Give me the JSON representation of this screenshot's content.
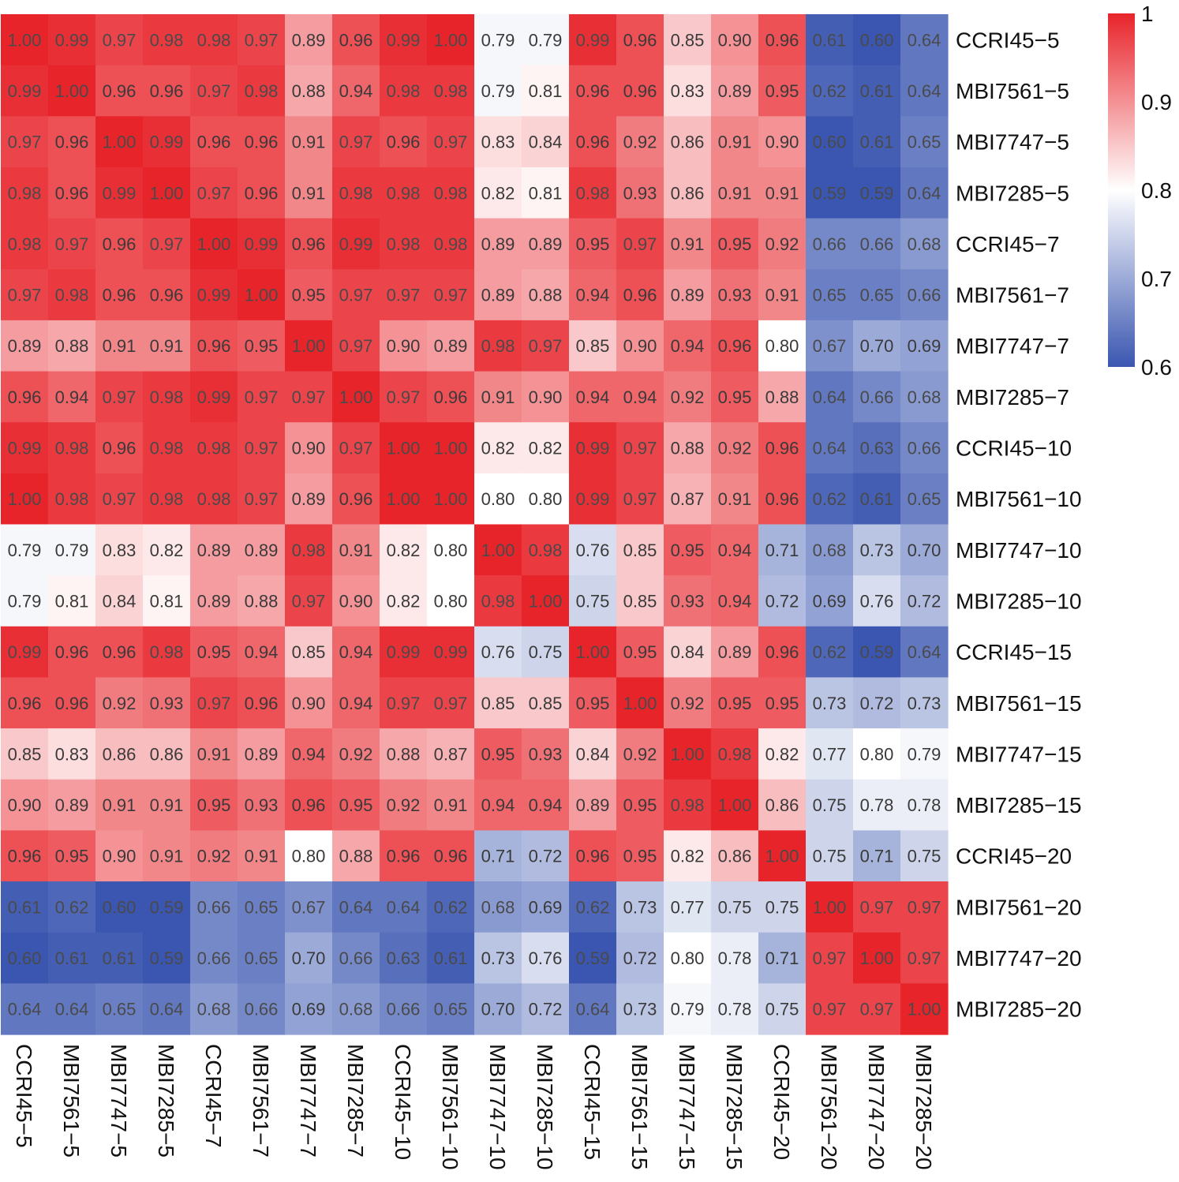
{
  "chart_data": {
    "type": "heatmap",
    "title": "",
    "rows": [
      "CCRI45−5",
      "MBI7561−5",
      "MBI7747−5",
      "MBI7285−5",
      "CCRI45−7",
      "MBI7561−7",
      "MBI7747−7",
      "MBI7285−7",
      "CCRI45−10",
      "MBI7561−10",
      "MBI7747−10",
      "MBI7285−10",
      "CCRI45−15",
      "MBI7561−15",
      "MBI7747−15",
      "MBI7285−15",
      "CCRI45−20",
      "MBI7561−20",
      "MBI7747−20",
      "MBI7285−20"
    ],
    "columns": [
      "CCRI45−5",
      "MBI7561−5",
      "MBI7747−5",
      "MBI7285−5",
      "CCRI45−7",
      "MBI7561−7",
      "MBI7747−7",
      "MBI7285−7",
      "CCRI45−10",
      "MBI7561−10",
      "MBI7747−10",
      "MBI7285−10",
      "CCRI45−15",
      "MBI7561−15",
      "MBI7747−15",
      "MBI7285−15",
      "CCRI45−20",
      "MBI7561−20",
      "MBI7747−20",
      "MBI7285−20"
    ],
    "values": [
      [
        1.0,
        0.99,
        0.97,
        0.98,
        0.98,
        0.97,
        0.89,
        0.96,
        0.99,
        1.0,
        0.79,
        0.79,
        0.99,
        0.96,
        0.85,
        0.9,
        0.96,
        0.61,
        0.6,
        0.64
      ],
      [
        0.99,
        1.0,
        0.96,
        0.96,
        0.97,
        0.98,
        0.88,
        0.94,
        0.98,
        0.98,
        0.79,
        0.81,
        0.96,
        0.96,
        0.83,
        0.89,
        0.95,
        0.62,
        0.61,
        0.64
      ],
      [
        0.97,
        0.96,
        1.0,
        0.99,
        0.96,
        0.96,
        0.91,
        0.97,
        0.96,
        0.97,
        0.83,
        0.84,
        0.96,
        0.92,
        0.86,
        0.91,
        0.9,
        0.6,
        0.61,
        0.65
      ],
      [
        0.98,
        0.96,
        0.99,
        1.0,
        0.97,
        0.96,
        0.91,
        0.98,
        0.98,
        0.98,
        0.82,
        0.81,
        0.98,
        0.93,
        0.86,
        0.91,
        0.91,
        0.59,
        0.59,
        0.64
      ],
      [
        0.98,
        0.97,
        0.96,
        0.97,
        1.0,
        0.99,
        0.96,
        0.99,
        0.98,
        0.98,
        0.89,
        0.89,
        0.95,
        0.97,
        0.91,
        0.95,
        0.92,
        0.66,
        0.66,
        0.68
      ],
      [
        0.97,
        0.98,
        0.96,
        0.96,
        0.99,
        1.0,
        0.95,
        0.97,
        0.97,
        0.97,
        0.89,
        0.88,
        0.94,
        0.96,
        0.89,
        0.93,
        0.91,
        0.65,
        0.65,
        0.66
      ],
      [
        0.89,
        0.88,
        0.91,
        0.91,
        0.96,
        0.95,
        1.0,
        0.97,
        0.9,
        0.89,
        0.98,
        0.97,
        0.85,
        0.9,
        0.94,
        0.96,
        0.8,
        0.67,
        0.7,
        0.69
      ],
      [
        0.96,
        0.94,
        0.97,
        0.98,
        0.99,
        0.97,
        0.97,
        1.0,
        0.97,
        0.96,
        0.91,
        0.9,
        0.94,
        0.94,
        0.92,
        0.95,
        0.88,
        0.64,
        0.66,
        0.68
      ],
      [
        0.99,
        0.98,
        0.96,
        0.98,
        0.98,
        0.97,
        0.9,
        0.97,
        1.0,
        1.0,
        0.82,
        0.82,
        0.99,
        0.97,
        0.88,
        0.92,
        0.96,
        0.64,
        0.63,
        0.66
      ],
      [
        1.0,
        0.98,
        0.97,
        0.98,
        0.98,
        0.97,
        0.89,
        0.96,
        1.0,
        1.0,
        0.8,
        0.8,
        0.99,
        0.97,
        0.87,
        0.91,
        0.96,
        0.62,
        0.61,
        0.65
      ],
      [
        0.79,
        0.79,
        0.83,
        0.82,
        0.89,
        0.89,
        0.98,
        0.91,
        0.82,
        0.8,
        1.0,
        0.98,
        0.76,
        0.85,
        0.95,
        0.94,
        0.71,
        0.68,
        0.73,
        0.7
      ],
      [
        0.79,
        0.81,
        0.84,
        0.81,
        0.89,
        0.88,
        0.97,
        0.9,
        0.82,
        0.8,
        0.98,
        1.0,
        0.75,
        0.85,
        0.93,
        0.94,
        0.72,
        0.69,
        0.76,
        0.72
      ],
      [
        0.99,
        0.96,
        0.96,
        0.98,
        0.95,
        0.94,
        0.85,
        0.94,
        0.99,
        0.99,
        0.76,
        0.75,
        1.0,
        0.95,
        0.84,
        0.89,
        0.96,
        0.62,
        0.59,
        0.64
      ],
      [
        0.96,
        0.96,
        0.92,
        0.93,
        0.97,
        0.96,
        0.9,
        0.94,
        0.97,
        0.97,
        0.85,
        0.85,
        0.95,
        1.0,
        0.92,
        0.95,
        0.95,
        0.73,
        0.72,
        0.73
      ],
      [
        0.85,
        0.83,
        0.86,
        0.86,
        0.91,
        0.89,
        0.94,
        0.92,
        0.88,
        0.87,
        0.95,
        0.93,
        0.84,
        0.92,
        1.0,
        0.98,
        0.82,
        0.77,
        0.8,
        0.79
      ],
      [
        0.9,
        0.89,
        0.91,
        0.91,
        0.95,
        0.93,
        0.96,
        0.95,
        0.92,
        0.91,
        0.94,
        0.94,
        0.89,
        0.95,
        0.98,
        1.0,
        0.86,
        0.75,
        0.78,
        0.78
      ],
      [
        0.96,
        0.95,
        0.9,
        0.91,
        0.92,
        0.91,
        0.8,
        0.88,
        0.96,
        0.96,
        0.71,
        0.72,
        0.96,
        0.95,
        0.82,
        0.86,
        1.0,
        0.75,
        0.71,
        0.75
      ],
      [
        0.61,
        0.62,
        0.6,
        0.59,
        0.66,
        0.65,
        0.67,
        0.64,
        0.64,
        0.62,
        0.68,
        0.69,
        0.62,
        0.73,
        0.77,
        0.75,
        0.75,
        1.0,
        0.97,
        0.97
      ],
      [
        0.6,
        0.61,
        0.61,
        0.59,
        0.66,
        0.65,
        0.7,
        0.66,
        0.63,
        0.61,
        0.73,
        0.76,
        0.59,
        0.72,
        0.8,
        0.78,
        0.71,
        0.97,
        1.0,
        0.97
      ],
      [
        0.64,
        0.64,
        0.65,
        0.64,
        0.68,
        0.66,
        0.69,
        0.68,
        0.66,
        0.65,
        0.7,
        0.72,
        0.64,
        0.73,
        0.79,
        0.78,
        0.75,
        0.97,
        0.97,
        1.0
      ]
    ],
    "color_scale": {
      "min": 0.6,
      "mid": 0.8,
      "max": 1.0,
      "low_color": "#3a56b0",
      "mid_color": "#ffffff",
      "high_color": "#e8242b"
    },
    "legend": {
      "position": "top-right",
      "ticks": [
        "1",
        "0.9",
        "0.8",
        "0.7",
        "0.6"
      ],
      "tick_values": [
        1.0,
        0.9,
        0.8,
        0.7,
        0.6
      ]
    },
    "xlabel": "",
    "ylabel": ""
  }
}
